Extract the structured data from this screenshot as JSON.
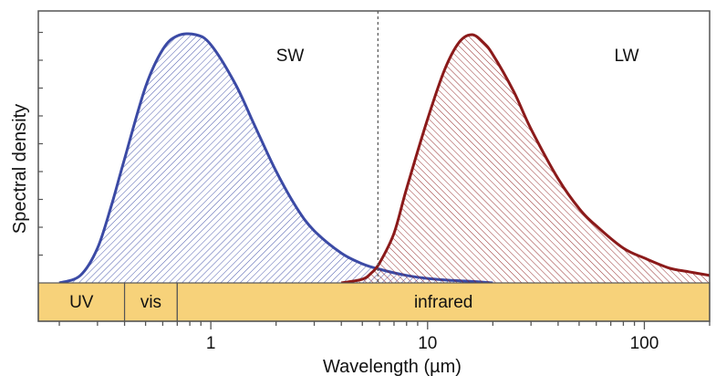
{
  "chart_data": {
    "type": "area",
    "xlabel": "Wavelength (µm)",
    "ylabel": "Spectral density",
    "xscale": "log",
    "xlim": [
      0.16,
      200
    ],
    "ylim": [
      0,
      1
    ],
    "xticks": [
      1,
      10,
      100
    ],
    "xtick_labels": [
      "1",
      "10",
      "100"
    ],
    "grid": false,
    "divider_x": 5.9,
    "series": [
      {
        "name": "SW",
        "color": "#3b4aa5",
        "hatch": "forward-diagonal",
        "x": [
          0.2,
          0.25,
          0.3,
          0.35,
          0.4,
          0.5,
          0.6,
          0.7,
          0.85,
          1.0,
          1.3,
          1.6,
          2.0,
          2.5,
          3.0,
          4.0,
          5.0,
          6.0,
          8.0,
          10.0,
          13.0,
          16.0,
          20.0
        ],
        "values": [
          0.0,
          0.03,
          0.14,
          0.32,
          0.5,
          0.79,
          0.94,
          0.995,
          1.0,
          0.96,
          0.8,
          0.63,
          0.45,
          0.3,
          0.21,
          0.12,
          0.077,
          0.055,
          0.03,
          0.018,
          0.01,
          0.006,
          0.0
        ]
      },
      {
        "name": "LW",
        "color": "#8b1a1a",
        "hatch": "back-diagonal",
        "x": [
          4.0,
          5.0,
          5.5,
          6.0,
          7.0,
          8.0,
          10.0,
          12.0,
          14.0,
          16.0,
          18.0,
          20.0,
          25.0,
          30.0,
          40.0,
          50.0,
          60.0,
          80.0,
          100.0,
          130.0,
          160.0,
          200.0
        ],
        "values": [
          0.0,
          0.015,
          0.04,
          0.08,
          0.2,
          0.38,
          0.66,
          0.86,
          0.97,
          1.0,
          0.97,
          0.92,
          0.77,
          0.62,
          0.42,
          0.3,
          0.23,
          0.14,
          0.1,
          0.06,
          0.045,
          0.03
        ]
      }
    ],
    "spectrum_bands": [
      {
        "label": "UV",
        "from": 0.16,
        "to": 0.4
      },
      {
        "label": "vis",
        "from": 0.4,
        "to": 0.7
      },
      {
        "label": "infrared",
        "from": 0.7,
        "to": 200
      }
    ],
    "band_color": "#f7d27a"
  }
}
